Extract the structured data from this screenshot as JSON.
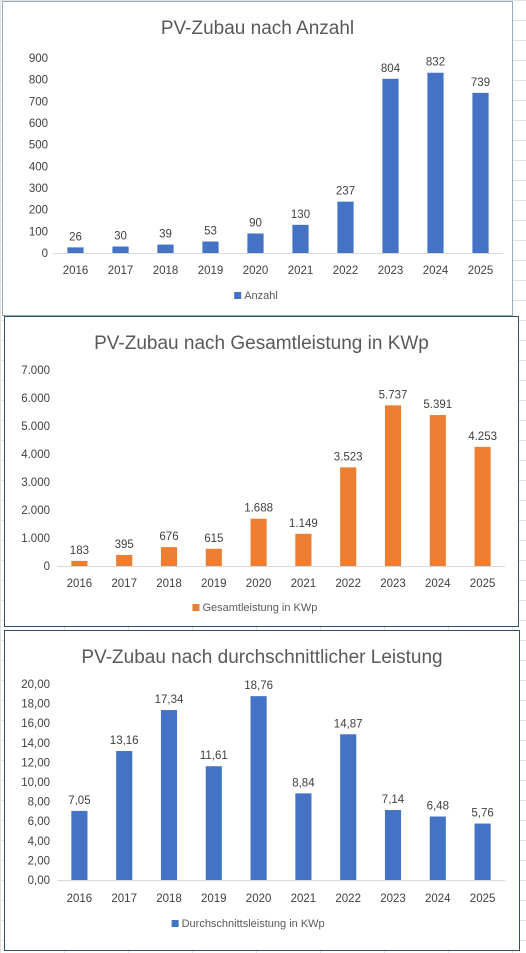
{
  "chart_data": [
    {
      "type": "bar",
      "title": "PV-Zubau nach Anzahl",
      "categories": [
        "2016",
        "2017",
        "2018",
        "2019",
        "2020",
        "2021",
        "2022",
        "2023",
        "2024",
        "2025"
      ],
      "series": [
        {
          "name": "Anzahl",
          "values": [
            26,
            30,
            39,
            53,
            90,
            130,
            237,
            804,
            832,
            739
          ],
          "color": "#4472c4"
        }
      ],
      "data_labels": [
        "26",
        "30",
        "39",
        "53",
        "90",
        "130",
        "237",
        "804",
        "832",
        "739"
      ],
      "ylim": [
        0,
        900
      ],
      "yticks": [
        0,
        100,
        200,
        300,
        400,
        500,
        600,
        700,
        800,
        900
      ],
      "ytick_labels": [
        "0",
        "100",
        "200",
        "300",
        "400",
        "500",
        "600",
        "700",
        "800",
        "900"
      ],
      "grid": false,
      "legend": "bottom"
    },
    {
      "type": "bar",
      "title": "PV-Zubau nach Gesamtleistung in KWp",
      "categories": [
        "2016",
        "2017",
        "2018",
        "2019",
        "2020",
        "2021",
        "2022",
        "2023",
        "2024",
        "2025"
      ],
      "series": [
        {
          "name": "Gesamtleistung in KWp",
          "values": [
            183,
            395,
            676,
            615,
            1688,
            1149,
            3523,
            5737,
            5391,
            4253
          ],
          "color": "#ed7d31"
        }
      ],
      "data_labels": [
        "183",
        "395",
        "676",
        "615",
        "1.688",
        "1.149",
        "3.523",
        "5.737",
        "5.391",
        "4.253"
      ],
      "ylim": [
        0,
        7000
      ],
      "yticks": [
        0,
        1000,
        2000,
        3000,
        4000,
        5000,
        6000,
        7000
      ],
      "ytick_labels": [
        "0",
        "1.000",
        "2.000",
        "3.000",
        "4.000",
        "5.000",
        "6.000",
        "7.000"
      ],
      "grid": false,
      "legend": "bottom"
    },
    {
      "type": "bar",
      "title": "PV-Zubau nach durchschnittlicher Leistung",
      "categories": [
        "2016",
        "2017",
        "2018",
        "2019",
        "2020",
        "2021",
        "2022",
        "2023",
        "2024",
        "2025"
      ],
      "series": [
        {
          "name": "Durchschnittsleistung in KWp",
          "values": [
            7.05,
            13.16,
            17.34,
            11.61,
            18.76,
            8.84,
            14.87,
            7.14,
            6.48,
            5.76
          ],
          "color": "#4472c4"
        }
      ],
      "data_labels": [
        "7,05",
        "13,16",
        "17,34",
        "11,61",
        "18,76",
        "8,84",
        "14,87",
        "7,14",
        "6,48",
        "5,76"
      ],
      "ylim": [
        0,
        20
      ],
      "yticks": [
        0,
        2,
        4,
        6,
        8,
        10,
        12,
        14,
        16,
        18,
        20
      ],
      "ytick_labels": [
        "0,00",
        "2,00",
        "4,00",
        "6,00",
        "8,00",
        "10,00",
        "12,00",
        "14,00",
        "16,00",
        "18,00",
        "20,00"
      ],
      "grid": false,
      "legend": "bottom"
    }
  ]
}
